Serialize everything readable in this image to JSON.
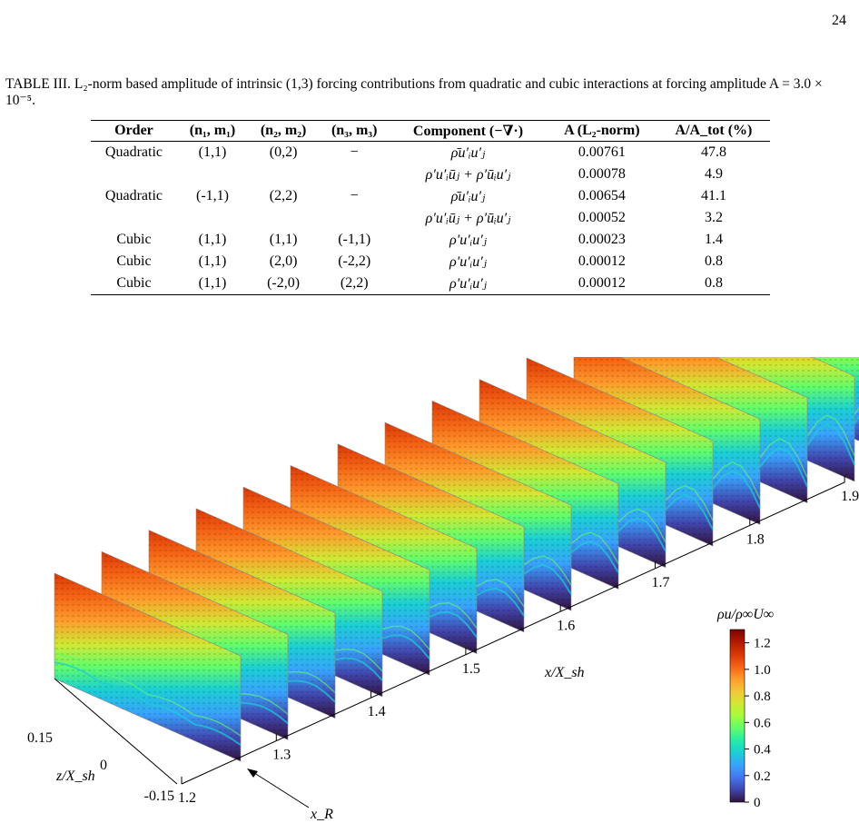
{
  "page_number": "24",
  "caption": {
    "prefix": "TABLE III.",
    "text": "L₂-norm based amplitude of intrinsic (1,3) forcing contributions from quadratic and cubic interactions at forcing amplitude A = 3.0 × 10⁻⁵."
  },
  "table": {
    "headers": [
      "Order",
      "(n₁, m₁)",
      "(n₂, m₂)",
      "(n₃, m₃)",
      "Component (−∇·)",
      "A (L₂-norm)",
      "A/A_tot (%)"
    ],
    "rows": [
      [
        "Quadratic",
        "(1,1)",
        "(0,2)",
        "−",
        "ρ̄u′ᵢu′ⱼ",
        "0.00761",
        "47.8"
      ],
      [
        "",
        "",
        "",
        "",
        "ρ′u′ᵢūⱼ + ρ′ūᵢu′ⱼ",
        "0.00078",
        "4.9"
      ],
      [
        "Quadratic",
        "(-1,1)",
        "(2,2)",
        "−",
        "ρ̄u′ᵢu′ⱼ",
        "0.00654",
        "41.1"
      ],
      [
        "",
        "",
        "",
        "",
        "ρ′u′ᵢūⱼ + ρ′ūᵢu′ⱼ",
        "0.00052",
        "3.2"
      ],
      [
        "Cubic",
        "(1,1)",
        "(1,1)",
        "(-1,1)",
        "ρ′u′ᵢu′ⱼ",
        "0.00023",
        "1.4"
      ],
      [
        "Cubic",
        "(1,1)",
        "(2,0)",
        "(-2,2)",
        "ρ′u′ᵢu′ⱼ",
        "0.00012",
        "0.8"
      ],
      [
        "Cubic",
        "(1,1)",
        "(-2,0)",
        "(2,2)",
        "ρ′u′ᵢu′ⱼ",
        "0.00012",
        "0.8"
      ]
    ]
  },
  "figure": {
    "x_axis": {
      "label": "x/X_sh",
      "ticks": [
        "1.2",
        "1.3",
        "1.4",
        "1.5",
        "1.6",
        "1.7",
        "1.8",
        "1.9"
      ],
      "marker_label": "x_R"
    },
    "z_axis": {
      "label": "z/X_sh",
      "ticks": [
        "0.15",
        "0",
        "-0.15"
      ]
    },
    "colorbar": {
      "label": "ρu/ρ∞U∞",
      "ticks": [
        "1.2",
        "1.0",
        "0.8",
        "0.6",
        "0.4",
        "0.2",
        "0"
      ],
      "colors": [
        "#30123b",
        "#4145ab",
        "#4675ed",
        "#39a2fc",
        "#1bcfd4",
        "#24eca6",
        "#61fc6c",
        "#a4fc3b",
        "#d1e834",
        "#f3c63a",
        "#fe9b2d",
        "#f36315",
        "#d93806",
        "#b11901",
        "#7a0403"
      ]
    },
    "slice_count": 15
  }
}
